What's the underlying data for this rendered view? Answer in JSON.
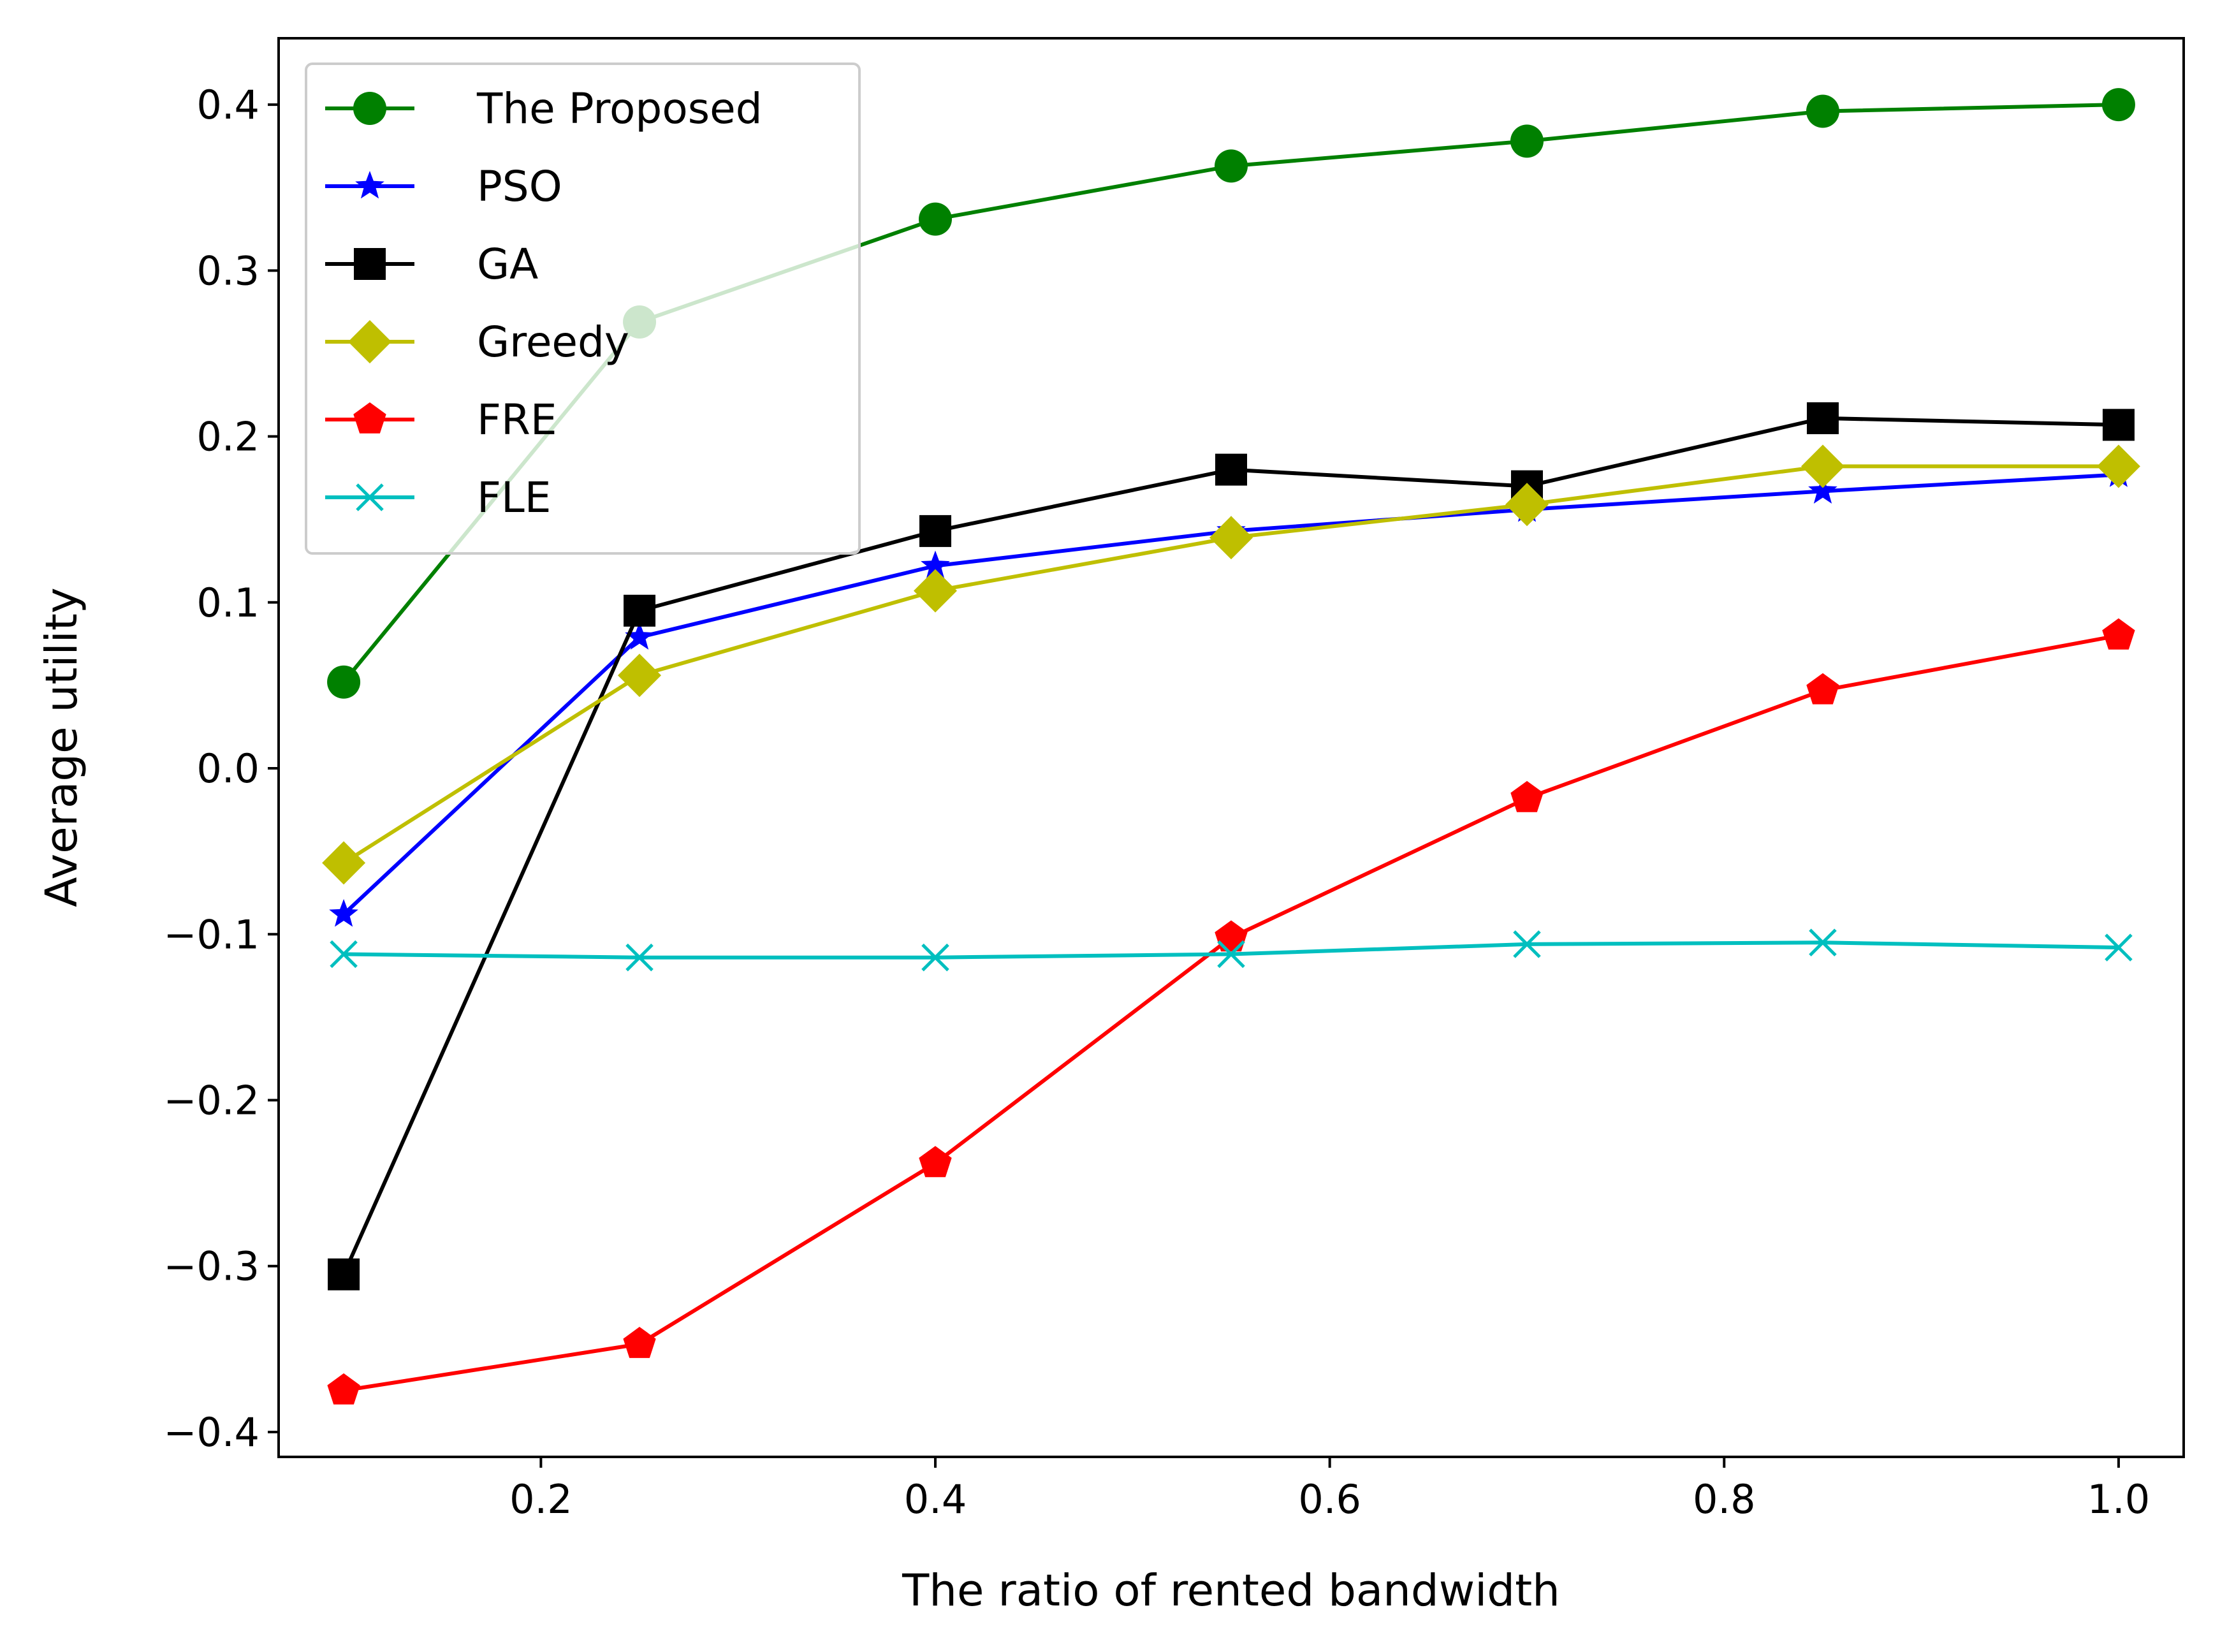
{
  "chart_data": {
    "type": "line",
    "title": "",
    "xlabel": "The ratio of rented bandwidth",
    "ylabel": "Average utility",
    "xlim": [
      0.067,
      1.033
    ],
    "ylim": [
      -0.415,
      0.44
    ],
    "xticks": [
      0.2,
      0.4,
      0.6,
      0.8,
      1.0
    ],
    "xtick_labels": [
      "0.2",
      "0.4",
      "0.6",
      "0.8",
      "1.0"
    ],
    "yticks": [
      -0.4,
      -0.3,
      -0.2,
      -0.1,
      0.0,
      0.1,
      0.2,
      0.3,
      0.4
    ],
    "ytick_labels": [
      "−0.4",
      "−0.3",
      "−0.2",
      "−0.1",
      "0.0",
      "0.1",
      "0.2",
      "0.3",
      "0.4"
    ],
    "grid": false,
    "legend_position": "top-left",
    "x": [
      0.1,
      0.25,
      0.4,
      0.55,
      0.7,
      0.85,
      1.0
    ],
    "series": [
      {
        "name": "The Proposed",
        "color": "#008000",
        "marker": "circle",
        "values": [
          0.052,
          0.269,
          0.331,
          0.363,
          0.378,
          0.396,
          0.4
        ]
      },
      {
        "name": "PSO",
        "color": "#0000ff",
        "marker": "star",
        "values": [
          -0.088,
          0.079,
          0.122,
          0.143,
          0.156,
          0.167,
          0.177
        ]
      },
      {
        "name": "GA",
        "color": "#000000",
        "marker": "square",
        "values": [
          -0.305,
          0.095,
          0.143,
          0.18,
          0.17,
          0.211,
          0.207
        ]
      },
      {
        "name": "Greedy",
        "color": "#bfbf00",
        "marker": "diamond",
        "values": [
          -0.057,
          0.056,
          0.107,
          0.139,
          0.159,
          0.182,
          0.182
        ]
      },
      {
        "name": "FRE",
        "color": "#ff0000",
        "marker": "pentagon",
        "values": [
          -0.375,
          -0.347,
          -0.238,
          -0.102,
          -0.018,
          0.047,
          0.08
        ]
      },
      {
        "name": "FLE",
        "color": "#00bfbf",
        "marker": "x",
        "values": [
          -0.112,
          -0.114,
          -0.114,
          -0.112,
          -0.106,
          -0.105,
          -0.108
        ]
      }
    ]
  }
}
